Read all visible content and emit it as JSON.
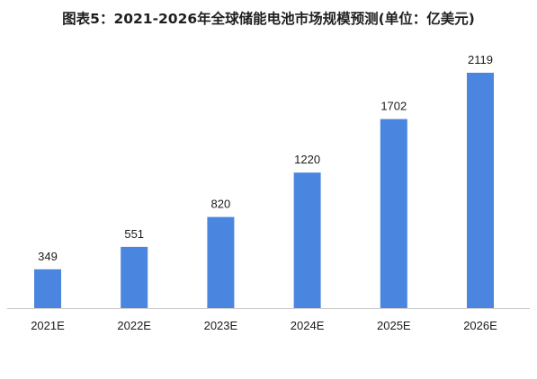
{
  "chart_data": {
    "type": "bar",
    "title": "图表5：2021-2026年全球储能电池市场规模预测(单位：亿美元)",
    "categories": [
      "2021E",
      "2022E",
      "2023E",
      "2024E",
      "2025E",
      "2026E"
    ],
    "values": [
      349,
      551,
      820,
      1220,
      1702,
      2119
    ],
    "xlabel": "",
    "ylabel": "",
    "ylim": [
      0,
      2119
    ],
    "grid": false,
    "data_labels": true,
    "colors": {
      "bar": "#4a86e0",
      "axis": "#cccccc",
      "text": "#1a1a1a"
    }
  }
}
